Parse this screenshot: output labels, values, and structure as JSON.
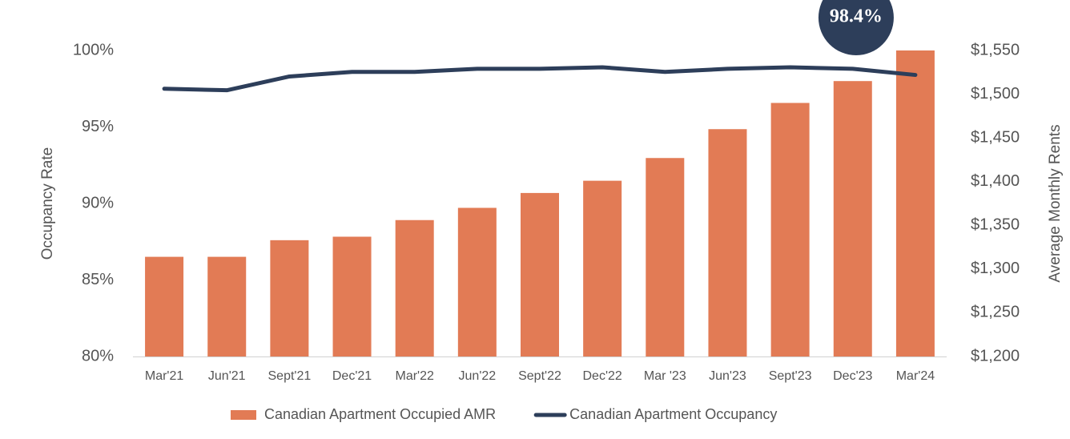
{
  "chart_data": {
    "type": "bar",
    "y_label": "Occupancy Rate",
    "y2_label": "Average Monthly Rents",
    "categories": [
      "Mar'21",
      "Jun'21",
      "Sept'21",
      "Dec'21",
      "Mar'22",
      "Jun'22",
      "Sept'22",
      "Dec'22",
      "Mar '23",
      "Jun'23",
      "Sept'23",
      "Dec'23",
      "Mar'24"
    ],
    "series": [
      {
        "name": "Canadian Apartment Occupied AMR",
        "type": "bar",
        "axis": "y2",
        "color": "#e27b55",
        "values": [
          1314,
          1314,
          1333,
          1337,
          1356,
          1370,
          1387,
          1401,
          1427,
          1460,
          1490,
          1515,
          1550
        ]
      },
      {
        "name": "Canadian Apartment Occupancy",
        "type": "line",
        "axis": "y",
        "color": "#2d3e5a",
        "values": [
          97.5,
          97.4,
          98.3,
          98.6,
          98.6,
          98.8,
          98.8,
          98.9,
          98.6,
          98.8,
          98.9,
          98.8,
          98.4
        ],
        "value_labels": [
          null,
          null,
          null,
          null,
          null,
          null,
          null,
          null,
          null,
          null,
          null,
          null,
          "98.4%"
        ]
      }
    ],
    "ylim": [
      80,
      100
    ],
    "yticks": [
      {
        "value": 80,
        "label": "80%"
      },
      {
        "value": 85,
        "label": "85%"
      },
      {
        "value": 90,
        "label": "90%"
      },
      {
        "value": 95,
        "label": "95%"
      },
      {
        "value": 100,
        "label": "100%"
      }
    ],
    "y2lim": [
      1200,
      1550
    ],
    "y2ticks": [
      {
        "value": 1200,
        "label": "$1,200"
      },
      {
        "value": 1250,
        "label": "$1,250"
      },
      {
        "value": 1300,
        "label": "$1,300"
      },
      {
        "value": 1350,
        "label": "$1,350"
      },
      {
        "value": 1400,
        "label": "$1,400"
      },
      {
        "value": 1450,
        "label": "$1,450"
      },
      {
        "value": 1500,
        "label": "$1,500"
      },
      {
        "value": 1550,
        "label": "$1,550"
      }
    ],
    "grid": false,
    "legend": "bottom"
  }
}
